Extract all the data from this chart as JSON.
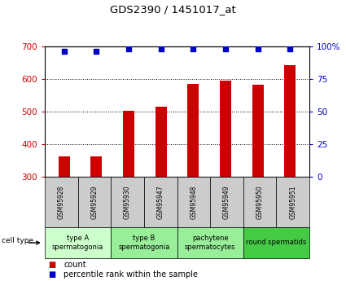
{
  "title": "GDS2390 / 1451017_at",
  "samples": [
    "GSM95928",
    "GSM95929",
    "GSM95930",
    "GSM95947",
    "GSM95948",
    "GSM95949",
    "GSM95950",
    "GSM95951"
  ],
  "counts": [
    362,
    362,
    502,
    516,
    585,
    596,
    583,
    643
  ],
  "percentiles": [
    96,
    96,
    98,
    98,
    98,
    98,
    98,
    98
  ],
  "ylim_left": [
    300,
    700
  ],
  "ylim_right": [
    0,
    100
  ],
  "yticks_left": [
    300,
    400,
    500,
    600,
    700
  ],
  "yticks_right": [
    0,
    25,
    50,
    75,
    100
  ],
  "bar_color": "#cc0000",
  "dot_color": "#0000cc",
  "bar_bottom": 300,
  "cell_type_colors": [
    "#ccffcc",
    "#99ee99",
    "#99ee99",
    "#44cc44"
  ],
  "cell_type_labels": [
    "type A\nspermatogonia",
    "type B\nspermatogonia",
    "pachytene\nspermatocytes",
    "round spermatids"
  ],
  "gsm_box_color": "#cccccc"
}
